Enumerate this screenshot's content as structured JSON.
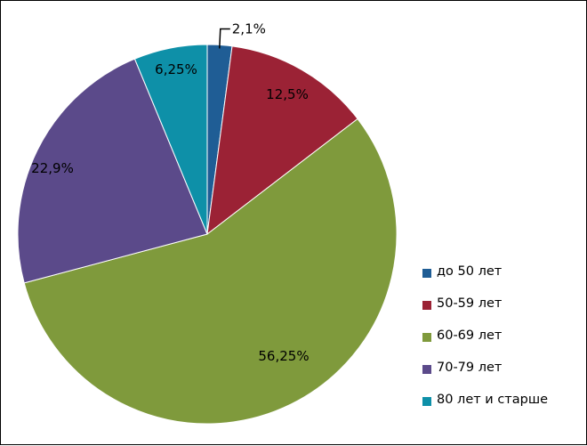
{
  "chart_data": {
    "type": "pie",
    "categories": [
      "до 50 лет",
      "50-59 лет",
      "60-69 лет",
      "70-79 лет",
      "80 лет и старше"
    ],
    "values": [
      2.1,
      12.5,
      56.25,
      22.9,
      6.25
    ],
    "data_labels": [
      "2,1%",
      "12,5%",
      "56,25%",
      "22,9%",
      "6,25%"
    ],
    "colors": [
      "#1F5D95",
      "#9B2235",
      "#7F9A3C",
      "#5B4A8A",
      "#0E90A8"
    ],
    "start_angle_deg": 0,
    "direction": "clockwise",
    "legend_position": "right"
  }
}
